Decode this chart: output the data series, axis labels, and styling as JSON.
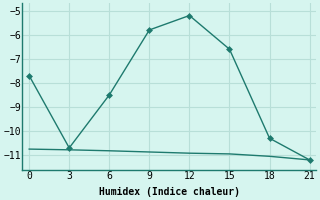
{
  "x": [
    0,
    3,
    6,
    9,
    12,
    15,
    18,
    21
  ],
  "y_main": [
    -7.7,
    -10.7,
    -8.5,
    -5.8,
    -5.2,
    -6.6,
    -10.3,
    -11.2
  ],
  "y_flat": [
    0,
    3,
    6,
    9,
    12,
    15,
    18,
    21
  ],
  "y_flat_vals": [
    -10.75,
    -10.78,
    -10.82,
    -10.87,
    -10.92,
    -10.95,
    -11.05,
    -11.2
  ],
  "line_color": "#1e7a6e",
  "bg_color": "#d6f5ef",
  "grid_color": "#b8dfd8",
  "xlabel": "Humidex (Indice chaleur)",
  "xlim": [
    -0.5,
    21.5
  ],
  "ylim": [
    -11.6,
    -4.7
  ],
  "xticks": [
    0,
    3,
    6,
    9,
    12,
    15,
    18,
    21
  ],
  "yticks": [
    -11,
    -10,
    -9,
    -8,
    -7,
    -6,
    -5
  ],
  "marker": "D",
  "marker_size": 3,
  "line_width": 1.0,
  "font_family": "monospace",
  "font_size_tick": 7,
  "font_size_label": 7
}
